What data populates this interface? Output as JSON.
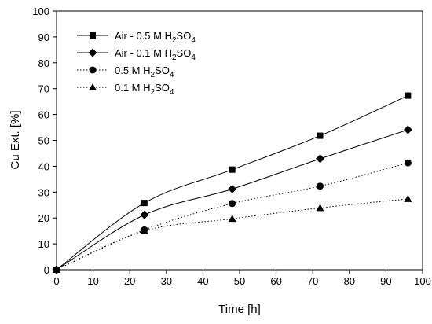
{
  "chart_data": {
    "type": "line",
    "xlabel": "Time [h]",
    "ylabel": "Cu Ext. [%]",
    "xlim": [
      0,
      100
    ],
    "ylim": [
      0,
      100
    ],
    "xticks": [
      0,
      10,
      20,
      30,
      40,
      50,
      60,
      70,
      80,
      90,
      100
    ],
    "yticks": [
      0,
      10,
      20,
      30,
      40,
      50,
      60,
      70,
      80,
      90,
      100
    ],
    "grid": false,
    "legend_position": "top-left",
    "series": [
      {
        "name": "Air - 0.5 M H2SO4",
        "marker": "square",
        "line": "solid",
        "x": [
          0,
          24,
          48,
          72,
          96
        ],
        "y": [
          0,
          25.8,
          38.7,
          51.8,
          67.3
        ]
      },
      {
        "name": "Air - 0.1 M H2SO4",
        "marker": "diamond",
        "line": "solid",
        "x": [
          0,
          24,
          48,
          72,
          96
        ],
        "y": [
          0,
          21.2,
          31.2,
          42.9,
          54.1
        ]
      },
      {
        "name": "0.5 M H2SO4",
        "marker": "circle",
        "line": "dotted",
        "x": [
          0,
          24,
          48,
          72,
          96
        ],
        "y": [
          0,
          15.4,
          25.6,
          32.3,
          41.3
        ]
      },
      {
        "name": "0.1 M H2SO4",
        "marker": "triangle",
        "line": "dotted",
        "x": [
          0,
          24,
          48,
          72,
          96
        ],
        "y": [
          0,
          15.0,
          19.7,
          23.9,
          27.4
        ]
      }
    ]
  }
}
